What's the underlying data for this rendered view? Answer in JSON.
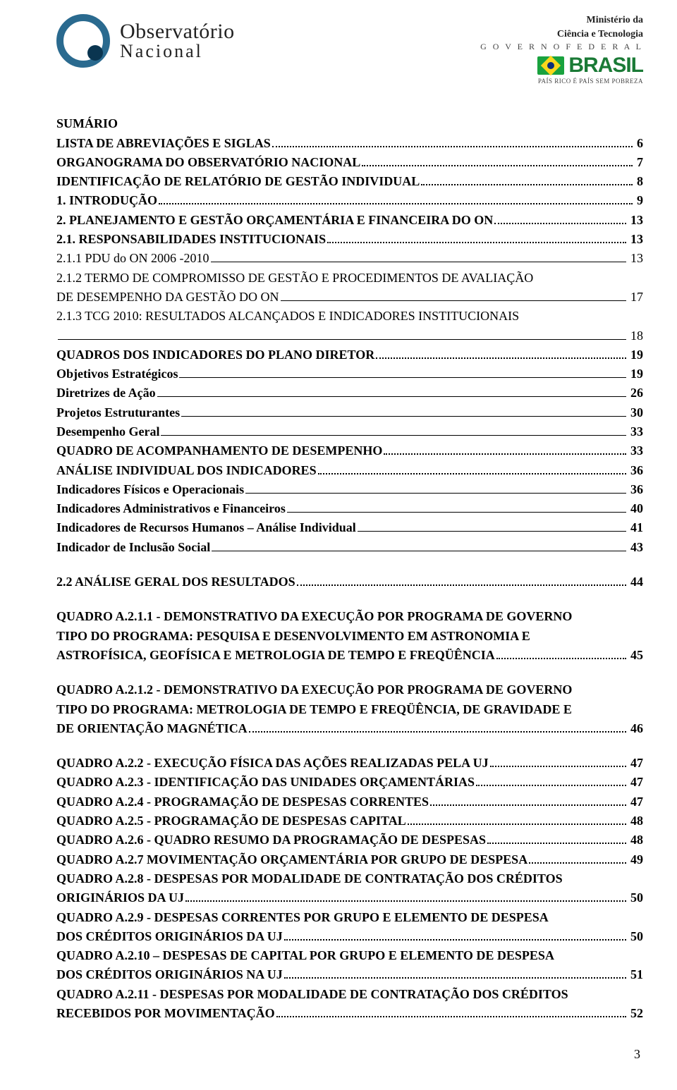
{
  "header": {
    "logo_line1": "Observatório",
    "logo_line2": "Nacional",
    "ministry_line1": "Ministério da",
    "ministry_line2": "Ciência e Tecnologia",
    "gov_line": "G O V E R N O   F E D E R A L",
    "brasil": "BRASIL",
    "slogan": "PAÍS RICO É PAÍS SEM POBREZA"
  },
  "toc": [
    {
      "bold": true,
      "fill": "none",
      "label": "SUMÁRIO",
      "page": ""
    },
    {
      "bold": true,
      "fill": "dots",
      "label": "LISTA DE ABREVIAÇÕES E SIGLAS",
      "page": "6"
    },
    {
      "bold": true,
      "fill": "dots",
      "label": "ORGANOGRAMA DO OBSERVATÓRIO NACIONAL",
      "page": "7"
    },
    {
      "bold": true,
      "fill": "dots",
      "label": "IDENTIFICAÇÃO DE RELATÓRIO DE GESTÃO INDIVIDUAL",
      "page": "8"
    },
    {
      "bold": true,
      "fill": "dots",
      "label": "1.   INTRODUÇÃO",
      "page": "9"
    },
    {
      "bold": true,
      "fill": "none",
      "label": "2.   PLANEJAMENTO E GESTÃO ORÇAMENTÁRIA E FINANCEIRA DO ON",
      "page": "13",
      "dotsAfter": true
    },
    {
      "bold": true,
      "fill": "dots",
      "label": "2.1.   RESPONSABILIDADES INSTITUCIONAIS",
      "page": "13"
    },
    {
      "bold": false,
      "fill": "line",
      "label": "2.1.1 PDU do ON  2006 -2010",
      "page": "13"
    },
    {
      "bold": false,
      "fill": "none",
      "label": "2.1.2 TERMO DE COMPROMISSO DE GESTÃO E PROCEDIMENTOS DE AVALIAÇÃO",
      "page": ""
    },
    {
      "bold": false,
      "fill": "line",
      "label": "DE DESEMPENHO DA GESTÃO DO ON",
      "page": "17"
    },
    {
      "bold": false,
      "fill": "none",
      "label": "2.1.3 TCG 2010: RESULTADOS ALCANÇADOS E  INDICADORES INSTITUCIONAIS",
      "page": ""
    },
    {
      "bold": false,
      "fill": "line",
      "label": "",
      "page": "18"
    },
    {
      "bold": true,
      "fill": "dots",
      "label": "QUADROS DOS INDICADORES DO PLANO DIRETOR",
      "page": "19"
    },
    {
      "bold": true,
      "fill": "line",
      "label": "Objetivos Estratégicos",
      "page": "19"
    },
    {
      "bold": true,
      "fill": "line",
      "label": "Diretrizes de Ação",
      "page": "26"
    },
    {
      "bold": true,
      "fill": "line",
      "label": "Projetos Estruturantes",
      "page": "30"
    },
    {
      "bold": true,
      "fill": "line",
      "label": "Desempenho Geral",
      "page": "33"
    },
    {
      "bold": true,
      "fill": "dots",
      "label": "QUADRO DE ACOMPANHAMENTO DE DESEMPENHO",
      "page": "33"
    },
    {
      "bold": true,
      "fill": "dots",
      "label": "ANÁLISE INDIVIDUAL DOS INDICADORES",
      "page": "36"
    },
    {
      "bold": true,
      "fill": "line",
      "label": "Indicadores Físicos e Operacionais",
      "page": "36"
    },
    {
      "bold": true,
      "fill": "line",
      "label": "Indicadores Administrativos e Financeiros",
      "page": "40"
    },
    {
      "bold": true,
      "fill": "line",
      "label": "Indicadores de Recursos Humanos – Análise Individual",
      "page": "41"
    },
    {
      "bold": true,
      "fill": "line",
      "label": "Indicador de Inclusão Social",
      "page": "43"
    },
    {
      "spacer": true
    },
    {
      "bold": true,
      "fill": "dots",
      "label": "2.2 ANÁLISE GERAL DOS RESULTADOS",
      "page": "44"
    },
    {
      "spacer": true
    },
    {
      "bold": true,
      "fill": "none",
      "label": "QUADRO A.2.1.1 - DEMONSTRATIVO DA EXECUÇÃO POR PROGRAMA DE GOVERNO",
      "page": ""
    },
    {
      "bold": true,
      "fill": "none",
      "label": "TIPO DO PROGRAMA: PESQUISA E DESENVOLVIMENTO EM ASTRONOMIA E",
      "page": ""
    },
    {
      "bold": true,
      "fill": "dots",
      "label": "ASTROFÍSICA, GEOFÍSICA E METROLOGIA DE TEMPO E FREQÜÊNCIA",
      "page": "45"
    },
    {
      "spacer": true
    },
    {
      "bold": true,
      "fill": "none",
      "label": "QUADRO A.2.1.2 - DEMONSTRATIVO DA EXECUÇÃO POR PROGRAMA DE GOVERNO",
      "page": ""
    },
    {
      "bold": true,
      "fill": "none",
      "label": "TIPO DO PROGRAMA: METROLOGIA DE TEMPO E FREQÜÊNCIA, DE GRAVIDADE E",
      "page": ""
    },
    {
      "bold": true,
      "fill": "dots",
      "label": "DE ORIENTAÇÃO MAGNÉTICA",
      "page": "46"
    },
    {
      "spacer": true
    },
    {
      "bold": true,
      "fill": "dots",
      "label": "QUADRO A.2.2 - EXECUÇÃO FÍSICA DAS AÇÕES REALIZADAS PELA UJ",
      "page": "47"
    },
    {
      "bold": true,
      "fill": "dots",
      "label": "QUADRO A.2.3 - IDENTIFICAÇÃO DAS UNIDADES ORÇAMENTÁRIAS",
      "page": "47"
    },
    {
      "bold": true,
      "fill": "dots",
      "label": "QUADRO A.2.4 - PROGRAMAÇÃO DE DESPESAS CORRENTES",
      "page": "47"
    },
    {
      "bold": true,
      "fill": "dots",
      "label": "QUADRO A.2.5 - PROGRAMAÇÃO DE DESPESAS CAPITAL",
      "page": "48"
    },
    {
      "bold": true,
      "fill": "dots",
      "label": "QUADRO A.2.6 - QUADRO RESUMO DA PROGRAMAÇÃO DE DESPESAS",
      "page": "48"
    },
    {
      "bold": true,
      "fill": "dots",
      "label": "QUADRO A.2.7 MOVIMENTAÇÃO ORÇAMENTÁRIA POR GRUPO DE DESPESA",
      "page": "49"
    },
    {
      "bold": true,
      "fill": "none",
      "label": "QUADRO A.2.8 - DESPESAS POR MODALIDADE DE CONTRATAÇÃO DOS CRÉDITOS",
      "page": ""
    },
    {
      "bold": true,
      "fill": "dots",
      "label": "ORIGINÁRIOS DA UJ",
      "page": "50"
    },
    {
      "bold": true,
      "fill": "none",
      "label": "QUADRO A.2.9 - DESPESAS CORRENTES POR GRUPO E ELEMENTO DE DESPESA",
      "page": ""
    },
    {
      "bold": true,
      "fill": "dots",
      "label": "DOS CRÉDITOS ORIGINÁRIOS DA UJ",
      "page": "50"
    },
    {
      "bold": true,
      "fill": "none",
      "label": "QUADRO A.2.10 – DESPESAS DE CAPITAL POR GRUPO E ELEMENTO DE DESPESA",
      "page": ""
    },
    {
      "bold": true,
      "fill": "dots",
      "label": "DOS CRÉDITOS ORIGINÁRIOS NA UJ",
      "page": "51"
    },
    {
      "bold": true,
      "fill": "none",
      "label": "QUADRO A.2.11 - DESPESAS POR MODALIDADE DE CONTRATAÇÃO DOS CRÉDITOS",
      "page": ""
    },
    {
      "bold": true,
      "fill": "dots",
      "label": "RECEBIDOS POR MOVIMENTAÇÃO",
      "page": "52"
    }
  ],
  "page_number": "3",
  "colors": {
    "text": "#000000",
    "logo_ring": "#2a6a8f",
    "logo_inner": "#0a3550",
    "brasil_green": "#1a7a36"
  }
}
